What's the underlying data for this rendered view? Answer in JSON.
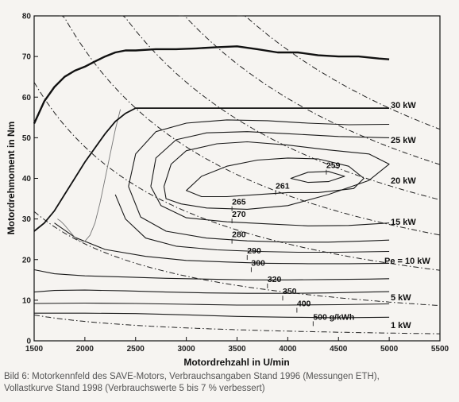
{
  "chart_data": {
    "type": "line",
    "title": "",
    "xlabel": "Motordrehzahl in U/min",
    "ylabel": "Motordrehmoment in Nm",
    "xlim": [
      1500,
      5500
    ],
    "ylim": [
      0,
      80
    ],
    "xticks": [
      1500,
      2000,
      2500,
      3000,
      3500,
      4000,
      4500,
      5000,
      5500
    ],
    "yticks": [
      0,
      10,
      20,
      30,
      40,
      50,
      60,
      70,
      80
    ],
    "grid": false,
    "full_load_curve_1998": {
      "x": [
        1500,
        1600,
        1700,
        1800,
        1900,
        2000,
        2100,
        2200,
        2300,
        2400,
        2500,
        2700,
        2900,
        3100,
        3300,
        3500,
        3700,
        3900,
        4100,
        4300,
        4500,
        4700,
        4900,
        5000
      ],
      "y": [
        53.5,
        59,
        62.5,
        65,
        66.5,
        67.5,
        68.8,
        70,
        71,
        71.5,
        71.5,
        71.8,
        71.8,
        72,
        72.3,
        72.5,
        71.8,
        71,
        71,
        70.3,
        70,
        70,
        69.5,
        69.3
      ]
    },
    "full_load_curve_1996": {
      "x": [
        1500,
        1600,
        1700,
        1800,
        1900,
        2000,
        2100,
        2200,
        2300,
        2400,
        2500,
        5000
      ],
      "y": [
        27,
        29,
        32,
        36,
        40,
        44,
        47.5,
        51,
        54,
        56,
        57.3,
        57.3
      ]
    },
    "power_curves": [
      {
        "label": "30 kW",
        "kw": 30
      },
      {
        "label": "25 kW",
        "kw": 25
      },
      {
        "label": "20 kW",
        "kw": 20
      },
      {
        "label": "15 kW",
        "kw": 15
      },
      {
        "label": "Pe = 10 kW",
        "kw": 10
      },
      {
        "label": "5 kW",
        "kw": 5
      },
      {
        "label": "1 kW",
        "kw": 1
      }
    ],
    "consumption_annotations": [
      {
        "text": "259",
        "x": 4380,
        "y": 42.5
      },
      {
        "text": "261",
        "x": 3880,
        "y": 37.5
      },
      {
        "text": "265",
        "x": 3450,
        "y": 33.5
      },
      {
        "text": "270",
        "x": 3450,
        "y": 30.5
      },
      {
        "text": "280",
        "x": 3450,
        "y": 25.5
      },
      {
        "text": "290",
        "x": 3600,
        "y": 21.5
      },
      {
        "text": "300",
        "x": 3640,
        "y": 18.5
      },
      {
        "text": "320",
        "x": 3800,
        "y": 14.5
      },
      {
        "text": "350",
        "x": 3950,
        "y": 11.5
      },
      {
        "text": "400",
        "x": 4090,
        "y": 8.5
      },
      {
        "text": "500 g/kWh",
        "x": 4250,
        "y": 5.2
      }
    ],
    "iso_lines": [
      {
        "value": 259,
        "x": [
          4030,
          4200,
          4400,
          4560,
          4400,
          4200,
          4030
        ],
        "y": [
          40,
          41.5,
          41.7,
          40.5,
          39.2,
          39,
          40
        ],
        "closed": true
      },
      {
        "value": 261,
        "x": [
          3000,
          3150,
          3400,
          3700,
          4000,
          4300,
          4600,
          4750,
          4650,
          4300,
          4000,
          3700,
          3400,
          3150,
          3000
        ],
        "y": [
          37,
          40.5,
          43,
          44.5,
          45,
          44.8,
          43,
          40,
          37.5,
          36.5,
          36.5,
          36,
          35.5,
          35.5,
          37
        ],
        "closed": true
      },
      {
        "value": 265,
        "x": [
          2780,
          2850,
          3000,
          3300,
          3600,
          4000,
          4400,
          4800,
          5000,
          4800,
          4400,
          4000,
          3600,
          3200,
          2950,
          2800,
          2780
        ],
        "y": [
          38,
          43.5,
          46.8,
          48.5,
          49,
          48.2,
          47,
          46,
          43.5,
          39.5,
          36,
          33.3,
          32.4,
          32.7,
          33.7,
          35,
          38
        ],
        "closed": false
      },
      {
        "value": 270,
        "x": [
          2650,
          2700,
          2900,
          3200,
          3600,
          4000,
          4500,
          5000
        ],
        "y": [
          38,
          45,
          49.5,
          51.2,
          51.5,
          51,
          50.3,
          50
        ],
        "closed": false
      },
      {
        "value": 270,
        "x": [
          2650,
          2750,
          3000,
          3400,
          3800,
          4200,
          4600,
          5000
        ],
        "y": [
          38,
          33.3,
          30.3,
          29.3,
          28.8,
          28.3,
          28.4,
          29
        ],
        "closed": false
      },
      {
        "value": 280,
        "x": [
          2430,
          2500,
          2700,
          3000,
          3400,
          3800,
          4200,
          4600,
          5000
        ],
        "y": [
          38,
          46,
          51.5,
          53.6,
          54.4,
          54.2,
          53.6,
          53.2,
          53.3
        ],
        "closed": false
      },
      {
        "value": 280,
        "x": [
          2430,
          2550,
          2800,
          3200,
          3600,
          4000,
          4400,
          4800,
          5000
        ],
        "y": [
          38,
          30.5,
          27,
          25.3,
          24.6,
          24.3,
          24.3,
          24.6,
          24.8
        ],
        "closed": false
      },
      {
        "value": 290,
        "x": [
          2300,
          2400,
          2600,
          2900,
          3300,
          3700,
          4100,
          4500,
          5000
        ],
        "y": [
          36,
          30,
          25.3,
          23.3,
          22.4,
          22,
          21.8,
          21.8,
          22
        ],
        "closed": false
      },
      {
        "value": 300,
        "x": [
          1700,
          1900,
          2200,
          2600,
          3000,
          3400,
          3800,
          4200,
          4600,
          5000
        ],
        "y": [
          29,
          25.5,
          22.5,
          20.8,
          19.8,
          19.4,
          19.1,
          19,
          19,
          19.1
        ],
        "closed": false
      },
      {
        "value": 320,
        "x": [
          1500,
          1700,
          2000,
          2400,
          2800,
          3200,
          3600,
          4000,
          4400,
          4800,
          5000
        ],
        "y": [
          17.5,
          16.5,
          16,
          15.7,
          15.4,
          15.2,
          15,
          15,
          15.1,
          15.2,
          15.3
        ],
        "closed": false
      },
      {
        "value": 350,
        "x": [
          1500,
          1700,
          2000,
          2400,
          2800,
          3200,
          3600,
          4000,
          4400,
          4800,
          5000
        ],
        "y": [
          12,
          12.4,
          12.5,
          12.3,
          12,
          11.8,
          11.7,
          11.7,
          11.8,
          12,
          12.1
        ],
        "closed": false
      },
      {
        "value": 400,
        "x": [
          1500,
          2000,
          2500,
          3000,
          3500,
          4000,
          4500,
          5000
        ],
        "y": [
          9.2,
          9.3,
          9.2,
          9,
          8.8,
          8.8,
          8.9,
          9.1
        ],
        "closed": false
      },
      {
        "value": 500,
        "x": [
          1500,
          2000,
          2500,
          3000,
          3500,
          4000,
          4500,
          5000
        ],
        "y": [
          6.8,
          6.8,
          6.7,
          6.4,
          6,
          5.8,
          5.7,
          5.8
        ],
        "closed": false
      }
    ],
    "thin_curve": {
      "x": [
        2350,
        2300,
        2250,
        2200,
        2150,
        2100,
        2050,
        2000,
        1950,
        1900,
        1850,
        1800,
        1760,
        1730
      ],
      "y": [
        57,
        52,
        46,
        40,
        34,
        29,
        26,
        24.5,
        24.5,
        25.5,
        27,
        28.5,
        29.5,
        30
      ]
    }
  },
  "caption": {
    "line1": "Bild 6: Motorkennfeld des SAVE-Motors, Verbrauchsangaben Stand 1996 (Messungen ETH),",
    "line2": "Vollastkurve Stand 1998 (Verbrauchswerte 5 bis 7 % verbessert)"
  }
}
